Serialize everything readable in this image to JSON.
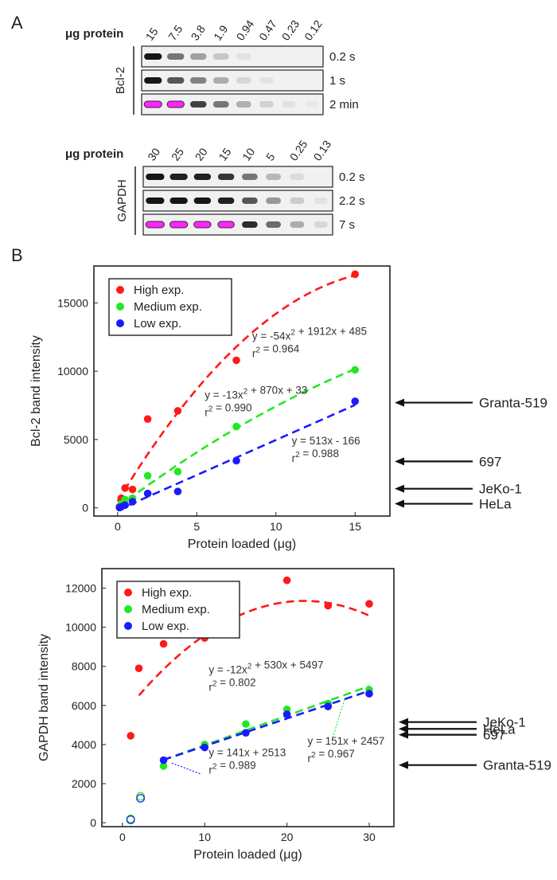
{
  "panel_a": {
    "label": "A",
    "bcl2": {
      "header": "μg protein",
      "lanes": [
        "15",
        "7.5",
        "3.8",
        "1.9",
        "0.94",
        "0.47",
        "0.23",
        "0.12"
      ],
      "protein": "Bcl-2",
      "exposures": [
        "0.2 s",
        "1 s",
        "2 min"
      ],
      "band_intensity": [
        [
          1.0,
          0.55,
          0.35,
          0.18,
          0.05,
          0.0,
          0.0,
          0.0
        ],
        [
          1.0,
          0.7,
          0.5,
          0.3,
          0.1,
          0.04,
          0.0,
          0.0
        ],
        [
          1.0,
          1.0,
          0.8,
          0.55,
          0.28,
          0.12,
          0.05,
          0.02
        ]
      ],
      "saturated_lanes": [
        [],
        [],
        [
          0,
          1
        ]
      ]
    },
    "gapdh": {
      "header": "μg protein",
      "lanes": [
        "30",
        "25",
        "20",
        "15",
        "10",
        "5",
        "0.25",
        "0.13"
      ],
      "protein": "GAPDH",
      "exposures": [
        "0.2 s",
        "2.2 s",
        "7 s"
      ],
      "band_intensity": [
        [
          1.0,
          0.95,
          0.95,
          0.85,
          0.55,
          0.25,
          0.08,
          0.0
        ],
        [
          1.0,
          1.0,
          1.0,
          0.95,
          0.7,
          0.4,
          0.15,
          0.05
        ],
        [
          1.0,
          1.0,
          1.0,
          1.0,
          0.9,
          0.6,
          0.3,
          0.1
        ]
      ],
      "saturated_lanes": [
        [],
        [],
        [
          0,
          1,
          2,
          3
        ]
      ]
    }
  },
  "panel_b": {
    "label": "B"
  },
  "chart_data": [
    {
      "type": "scatter",
      "xlabel": "Protein loaded (μg)",
      "ylabel": "Bcl-2 band intensity",
      "xlim": [
        -1.5,
        17.2
      ],
      "ylim": [
        -600,
        17700
      ],
      "xticks": [
        0,
        5,
        10,
        15
      ],
      "yticks": [
        0,
        5000,
        10000,
        15000
      ],
      "legend_position": "top-left",
      "series": [
        {
          "name": "High exp.",
          "color": "#ff1a1a",
          "x": [
            0.12,
            0.23,
            0.47,
            0.94,
            1.9,
            3.8,
            7.5,
            15
          ],
          "y": [
            100,
            700,
            1450,
            1350,
            6500,
            7100,
            10800,
            17100
          ],
          "fit": {
            "a": -54,
            "b": 1912,
            "c": 485,
            "from": 0,
            "to": 15
          }
        },
        {
          "name": "Medium exp.",
          "color": "#22e822",
          "x": [
            0.12,
            0.23,
            0.47,
            0.94,
            1.9,
            3.8,
            7.5,
            15
          ],
          "y": [
            50,
            300,
            600,
            700,
            2350,
            2650,
            5950,
            10100
          ],
          "fit": {
            "a": -13,
            "b": 870,
            "c": 33,
            "from": 0,
            "to": 15
          }
        },
        {
          "name": "Low exp.",
          "color": "#1a1aff",
          "x": [
            0.12,
            0.23,
            0.47,
            0.94,
            1.9,
            3.8,
            7.5,
            15
          ],
          "y": [
            20,
            80,
            200,
            450,
            1050,
            1200,
            3450,
            7800
          ],
          "fit": {
            "a": 0,
            "b": 513,
            "c": -166,
            "from": 0,
            "to": 15
          }
        }
      ],
      "annotations": [
        {
          "eq": "y = -54x² + 1912x + 485",
          "r2": "r² = 0.964",
          "x": 8.5,
          "y": 12300
        },
        {
          "eq": "y = -13x² + 870x + 33",
          "r2": "r² = 0.990",
          "x": 5.5,
          "y": 8000
        },
        {
          "eq": "y = 513x - 166",
          "r2": "r² = 0.988",
          "x": 11,
          "y": 4650
        }
      ],
      "cell_lines": [
        {
          "name": "Granta-519",
          "y": 7700
        },
        {
          "name": "697",
          "y": 3400
        },
        {
          "name": "JeKo-1",
          "y": 1400
        },
        {
          "name": "HeLa",
          "y": 300
        }
      ]
    },
    {
      "type": "scatter",
      "xlabel": "Protein loaded (μg)",
      "ylabel": "GAPDH band intensity",
      "xlim": [
        -2.5,
        33
      ],
      "ylim": [
        -200,
        13000
      ],
      "xticks": [
        0,
        10,
        20,
        30
      ],
      "yticks": [
        0,
        2000,
        4000,
        6000,
        8000,
        10000,
        12000
      ],
      "legend_position": "top-left",
      "series": [
        {
          "name": "High exp.",
          "color": "#ff1a1a",
          "x": [
            1,
            2,
            5,
            10,
            20,
            25,
            30
          ],
          "y": [
            4450,
            7900,
            9150,
            9450,
            12400,
            11100,
            11200
          ],
          "fit": {
            "a": -12,
            "b": 530,
            "c": 5497,
            "from": 2,
            "to": 30
          }
        },
        {
          "name": "Medium exp.",
          "color": "#22e822",
          "x": [
            5,
            10,
            15,
            20,
            25,
            30
          ],
          "y": [
            2900,
            4000,
            5050,
            5800,
            6100,
            6800
          ],
          "fit": {
            "a": 0,
            "b": 151,
            "c": 2457,
            "from": 5,
            "to": 30
          },
          "outliers": {
            "x": [
              1,
              2.2
            ],
            "y": [
              200,
              1350
            ]
          }
        },
        {
          "name": "Low exp.",
          "color": "#1a1aff",
          "x": [
            5,
            10,
            15,
            20,
            25,
            30
          ],
          "y": [
            3200,
            3850,
            4600,
            5550,
            5950,
            6600
          ],
          "fit": {
            "a": 0,
            "b": 141,
            "c": 2513,
            "from": 5,
            "to": 30
          },
          "outliers": {
            "x": [
              1,
              2.2
            ],
            "y": [
              150,
              1250
            ]
          }
        }
      ],
      "annotations": [
        {
          "eq": "y = -12x² + 530x + 5497",
          "r2": "r² = 0.802",
          "x": 10.5,
          "y": 7650
        },
        {
          "eq": "y = 151x + 2457",
          "r2": "r² = 0.967",
          "x": 22.5,
          "y": 4000
        },
        {
          "eq": "y = 141x + 2513",
          "r2": "r² = 0.989",
          "x": 10.5,
          "y": 3400
        }
      ],
      "cell_lines": [
        {
          "name": "JeKo-1",
          "y": 5150
        },
        {
          "name": "HeLa",
          "y": 4800
        },
        {
          "name": "697",
          "y": 4500
        },
        {
          "name": "Granta-519",
          "y": 2950
        }
      ]
    }
  ]
}
